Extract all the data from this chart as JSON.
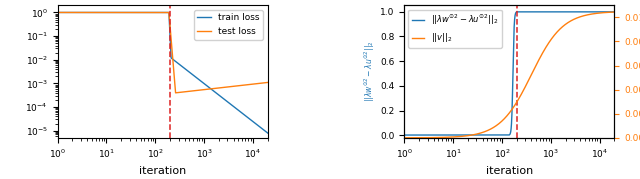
{
  "left_plot": {
    "vline_x": 200,
    "vline_color": "#dd2222",
    "xlabel": "iteration",
    "line_colors": [
      "#1f77b4",
      "#ff7f0e"
    ],
    "legend": [
      "train loss",
      "test loss"
    ],
    "xlim": [
      1,
      20000
    ],
    "ylim_log": [
      -5.3,
      0.3
    ]
  },
  "right_plot": {
    "vline_x": 200,
    "vline_color": "#dd2222",
    "xlabel": "iteration",
    "line_colors": [
      "#1f77b4",
      "#ff7f0e"
    ],
    "ylim_left": [
      -0.02,
      1.05
    ],
    "ylim_right": [
      0,
      0.011
    ],
    "xlim": [
      1,
      20000
    ]
  },
  "fig_bg": "#ffffff"
}
